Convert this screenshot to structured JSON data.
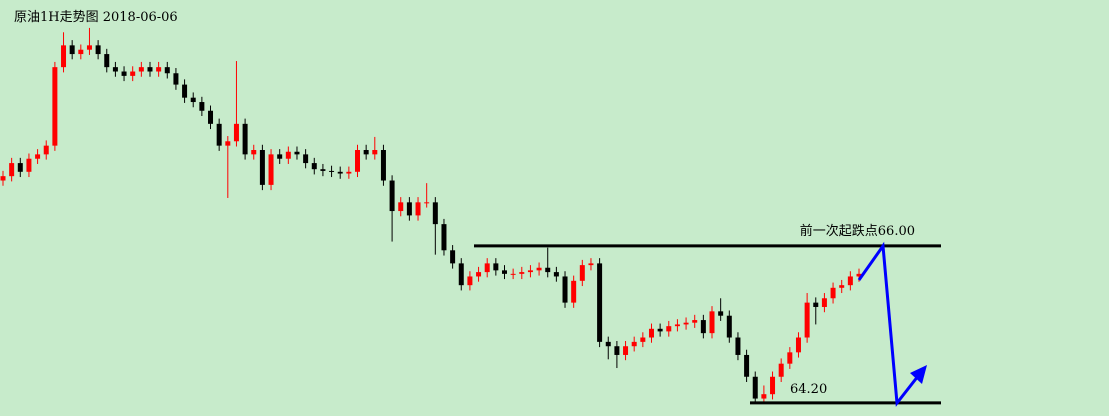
{
  "chart_data": {
    "type": "candlestick",
    "title": "原油1H走势图 2018-06-06",
    "up_color": "#ff0000",
    "down_color": "#000000",
    "ylim": [
      64.05,
      68.82
    ],
    "open": [
      66.75,
      66.8,
      66.95,
      66.85,
      67.0,
      67.05,
      67.15,
      68.05,
      68.3,
      68.2,
      68.25,
      68.3,
      68.2,
      68.05,
      68.0,
      67.95,
      68.0,
      68.05,
      68.0,
      68.05,
      67.98,
      67.85,
      67.7,
      67.65,
      67.55,
      67.4,
      67.15,
      67.2,
      67.4,
      67.05,
      67.1,
      66.7,
      67.05,
      67.0,
      67.08,
      67.05,
      66.95,
      66.88,
      66.86,
      66.85,
      66.83,
      66.85,
      67.1,
      67.05,
      67.1,
      66.75,
      66.4,
      66.5,
      66.35,
      66.5,
      66.5,
      66.25,
      65.95,
      65.8,
      65.55,
      65.65,
      65.7,
      65.8,
      65.72,
      65.68,
      65.68,
      65.7,
      65.72,
      65.75,
      65.7,
      65.65,
      65.35,
      65.6,
      65.78,
      65.8,
      64.9,
      64.85,
      64.75,
      64.85,
      64.9,
      64.95,
      65.05,
      65.02,
      65.08,
      65.1,
      65.12,
      65.15,
      65.0,
      65.25,
      65.2,
      64.95,
      64.75,
      64.5,
      64.25,
      64.3,
      64.5,
      64.65,
      64.78,
      64.95,
      65.35,
      65.3,
      65.4,
      65.52,
      65.55,
      65.65
    ],
    "high": [
      66.86,
      67.01,
      67.01,
      67.06,
      67.11,
      67.21,
      68.11,
      68.45,
      68.36,
      68.31,
      68.5,
      68.36,
      68.26,
      68.11,
      68.06,
      68.06,
      68.11,
      68.11,
      68.11,
      68.11,
      68.04,
      67.91,
      67.76,
      67.71,
      67.61,
      67.46,
      67.26,
      68.12,
      67.46,
      67.16,
      67.16,
      67.11,
      67.11,
      67.14,
      67.14,
      67.11,
      67.01,
      66.94,
      66.92,
      66.91,
      66.91,
      67.16,
      67.16,
      67.25,
      67.16,
      66.81,
      66.56,
      66.56,
      66.56,
      66.72,
      66.56,
      66.31,
      66.01,
      65.86,
      65.71,
      65.76,
      65.86,
      65.86,
      65.78,
      65.74,
      65.76,
      65.78,
      65.81,
      65.98,
      65.76,
      65.71,
      65.66,
      65.84,
      65.86,
      65.86,
      64.96,
      64.91,
      64.91,
      64.96,
      65.01,
      65.11,
      65.11,
      65.14,
      65.16,
      65.18,
      65.21,
      65.21,
      65.31,
      65.4,
      65.26,
      65.01,
      64.81,
      64.56,
      64.4,
      64.56,
      64.71,
      64.84,
      65.01,
      65.46,
      65.41,
      65.46,
      65.58,
      65.61,
      65.71,
      65.74
    ],
    "low": [
      66.69,
      66.74,
      66.79,
      66.79,
      66.94,
      66.99,
      67.09,
      67.99,
      68.14,
      68.14,
      68.19,
      68.14,
      67.99,
      67.94,
      67.89,
      67.89,
      67.94,
      67.94,
      67.94,
      67.92,
      67.79,
      67.64,
      67.59,
      67.49,
      67.34,
      67.09,
      66.55,
      67.14,
      66.99,
      66.99,
      66.64,
      66.64,
      66.94,
      66.94,
      66.99,
      66.89,
      66.82,
      66.8,
      66.79,
      66.77,
      66.77,
      66.79,
      66.99,
      66.99,
      66.69,
      66.05,
      66.34,
      66.29,
      66.29,
      66.44,
      65.9,
      65.89,
      65.74,
      65.49,
      65.49,
      65.59,
      65.64,
      65.66,
      65.62,
      65.62,
      65.62,
      65.64,
      65.66,
      65.64,
      65.59,
      65.29,
      65.29,
      65.54,
      65.72,
      64.84,
      64.7,
      64.6,
      64.69,
      64.79,
      64.84,
      64.89,
      64.96,
      64.96,
      65.02,
      65.04,
      65.06,
      64.94,
      64.94,
      65.14,
      64.89,
      64.69,
      64.44,
      64.19,
      64.19,
      64.24,
      64.44,
      64.59,
      64.72,
      64.89,
      65.1,
      65.24,
      65.34,
      65.46,
      65.49,
      65.59
    ],
    "close": [
      66.8,
      66.95,
      66.85,
      67.0,
      67.05,
      67.15,
      68.05,
      68.3,
      68.2,
      68.25,
      68.3,
      68.2,
      68.05,
      68.0,
      67.95,
      68.0,
      68.05,
      68.0,
      68.05,
      67.98,
      67.85,
      67.7,
      67.65,
      67.55,
      67.4,
      67.15,
      67.2,
      67.4,
      67.05,
      67.1,
      66.7,
      67.05,
      67.0,
      67.08,
      67.05,
      66.95,
      66.88,
      66.86,
      66.85,
      66.83,
      66.85,
      67.1,
      67.05,
      67.1,
      66.75,
      66.4,
      66.5,
      66.35,
      66.5,
      66.5,
      66.25,
      65.95,
      65.8,
      65.55,
      65.65,
      65.7,
      65.8,
      65.72,
      65.68,
      65.68,
      65.7,
      65.72,
      65.75,
      65.7,
      65.65,
      65.35,
      65.6,
      65.78,
      65.8,
      64.9,
      64.85,
      64.75,
      64.85,
      64.9,
      64.95,
      65.05,
      65.02,
      65.08,
      65.1,
      65.12,
      65.15,
      65.0,
      65.25,
      65.2,
      64.95,
      64.75,
      64.5,
      64.25,
      64.3,
      64.5,
      64.65,
      64.78,
      64.95,
      65.35,
      65.3,
      65.4,
      65.52,
      65.55,
      65.65,
      65.68
    ],
    "levels": [
      {
        "value": 66.0,
        "label": "前一次起跌点66.00"
      },
      {
        "value": 64.2,
        "label": "64.20"
      }
    ]
  }
}
